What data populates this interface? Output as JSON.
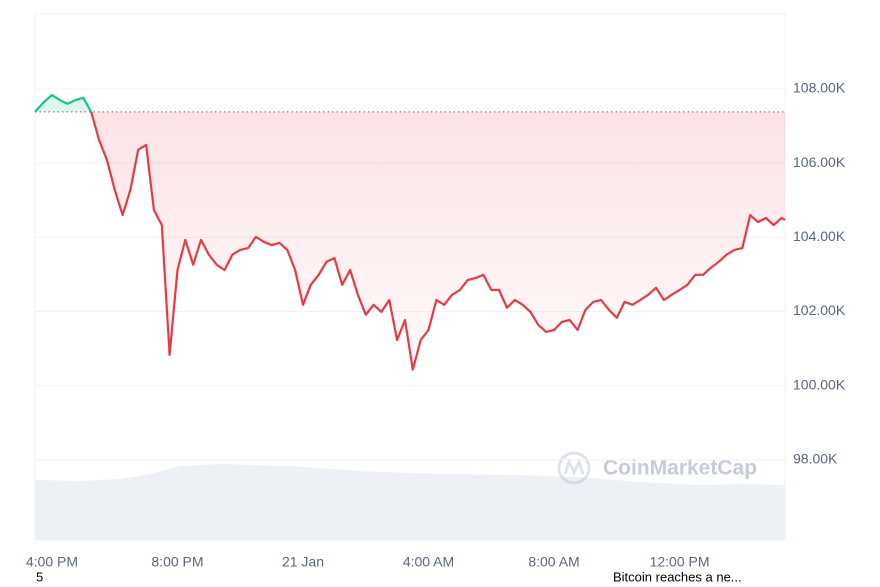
{
  "chart_data": {
    "type": "line",
    "x": [
      -0.54,
      -0.25,
      0,
      0.25,
      0.5,
      0.75,
      1,
      1.25,
      1.5,
      1.75,
      2,
      2.25,
      2.5,
      2.75,
      3,
      3.25,
      3.5,
      3.75,
      4,
      4.25,
      4.5,
      4.75,
      5,
      5.25,
      5.5,
      5.75,
      6,
      6.25,
      6.5,
      6.75,
      7,
      7.25,
      7.5,
      7.75,
      8,
      8.25,
      8.5,
      8.75,
      9,
      9.25,
      9.5,
      9.75,
      10,
      10.25,
      10.5,
      10.75,
      11,
      11.25,
      11.5,
      11.75,
      12,
      12.25,
      12.5,
      12.75,
      13,
      13.25,
      13.5,
      13.75,
      14,
      14.25,
      14.5,
      14.75,
      15,
      15.25,
      15.5,
      15.75,
      16,
      16.25,
      16.5,
      16.75,
      17,
      17.25,
      17.5,
      17.75,
      18,
      18.25,
      18.5,
      18.75,
      19,
      19.25,
      19.5,
      19.75,
      20,
      20.25,
      20.5,
      20.75,
      21,
      21.25,
      21.5,
      21.75,
      22,
      22.25,
      22.5,
      22.75,
      23,
      23.25,
      23.36
    ],
    "values": [
      107380,
      107650,
      107840,
      107700,
      107600,
      107700,
      107760,
      107380,
      106630,
      106090,
      105280,
      104600,
      105280,
      106360,
      106490,
      104740,
      104330,
      100830,
      103120,
      103930,
      103260,
      103930,
      103530,
      103260,
      103120,
      103530,
      103660,
      103710,
      104010,
      103880,
      103790,
      103850,
      103660,
      103120,
      102180,
      102720,
      102990,
      103340,
      103440,
      102720,
      103120,
      102450,
      101910,
      102180,
      101990,
      102310,
      101230,
      101770,
      100430,
      101230,
      101500,
      102310,
      102180,
      102450,
      102580,
      102850,
      102900,
      102990,
      102580,
      102580,
      102100,
      102310,
      102180,
      101990,
      101640,
      101450,
      101500,
      101720,
      101770,
      101500,
      102040,
      102260,
      102310,
      102040,
      101830,
      102260,
      102180,
      102310,
      102450,
      102640,
      102310,
      102450,
      102580,
      102720,
      102990,
      102990,
      103180,
      103340,
      103530,
      103660,
      103710,
      104600,
      104410,
      104520,
      104330,
      104520,
      104470
    ],
    "baseline": 107380,
    "up_color": "#16c784",
    "down_color": "#ea3943",
    "xlim": [
      -0.54,
      23.36
    ],
    "xticks": [
      {
        "value": 0,
        "label": "4:00 PM"
      },
      {
        "value": 4,
        "label": "8:00 PM"
      },
      {
        "value": 8,
        "label": "21 Jan"
      },
      {
        "value": 12,
        "label": "4:00 AM"
      },
      {
        "value": 16,
        "label": "8:00 AM"
      },
      {
        "value": 20,
        "label": "12:00 PM"
      }
    ],
    "ylim": [
      95840,
      110020
    ],
    "yticks": [
      {
        "value": 98000,
        "label": "98.00K"
      },
      {
        "value": 100000,
        "label": "100.00K"
      },
      {
        "value": 102000,
        "label": "102.00K"
      },
      {
        "value": 104000,
        "label": "104.00K"
      },
      {
        "value": 106000,
        "label": "106.00K"
      },
      {
        "value": 108000,
        "label": "108.00K"
      }
    ],
    "grid": true,
    "watermark": "CoinMarketCap",
    "annotations": [
      "5",
      "Bitcoin reaches a ne..."
    ]
  }
}
